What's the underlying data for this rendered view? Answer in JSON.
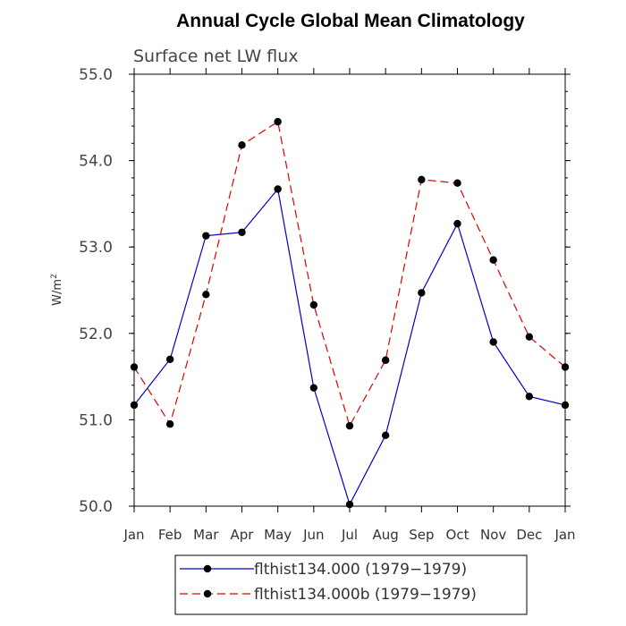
{
  "chart_data": {
    "type": "line",
    "title": "Annual Cycle Global Mean Climatology",
    "subtitle": "Surface net LW flux",
    "ylabel": "W/m",
    "ylabel_sup": "2",
    "ylim": [
      50.0,
      55.0
    ],
    "yticks": [
      "50.0",
      "51.0",
      "52.0",
      "53.0",
      "54.0",
      "55.0"
    ],
    "categories": [
      "Jan",
      "Feb",
      "Mar",
      "Apr",
      "May",
      "Jun",
      "Jul",
      "Aug",
      "Sep",
      "Oct",
      "Nov",
      "Dec",
      "Jan"
    ],
    "legend_position": "bottom",
    "series": [
      {
        "name": "flthist134.000 (1979−1979)",
        "color": "#0000cc",
        "dash": "solid",
        "values": [
          51.17,
          51.7,
          53.13,
          53.17,
          53.67,
          51.37,
          50.02,
          50.82,
          52.47,
          53.27,
          51.9,
          51.27,
          51.17
        ]
      },
      {
        "name": "flthist134.000b (1979−1979)",
        "color": "#dd0000",
        "dash": "dashed",
        "values": [
          51.61,
          50.95,
          52.45,
          54.18,
          54.45,
          52.33,
          50.93,
          51.69,
          53.78,
          53.74,
          52.85,
          51.96,
          51.61
        ]
      }
    ]
  }
}
